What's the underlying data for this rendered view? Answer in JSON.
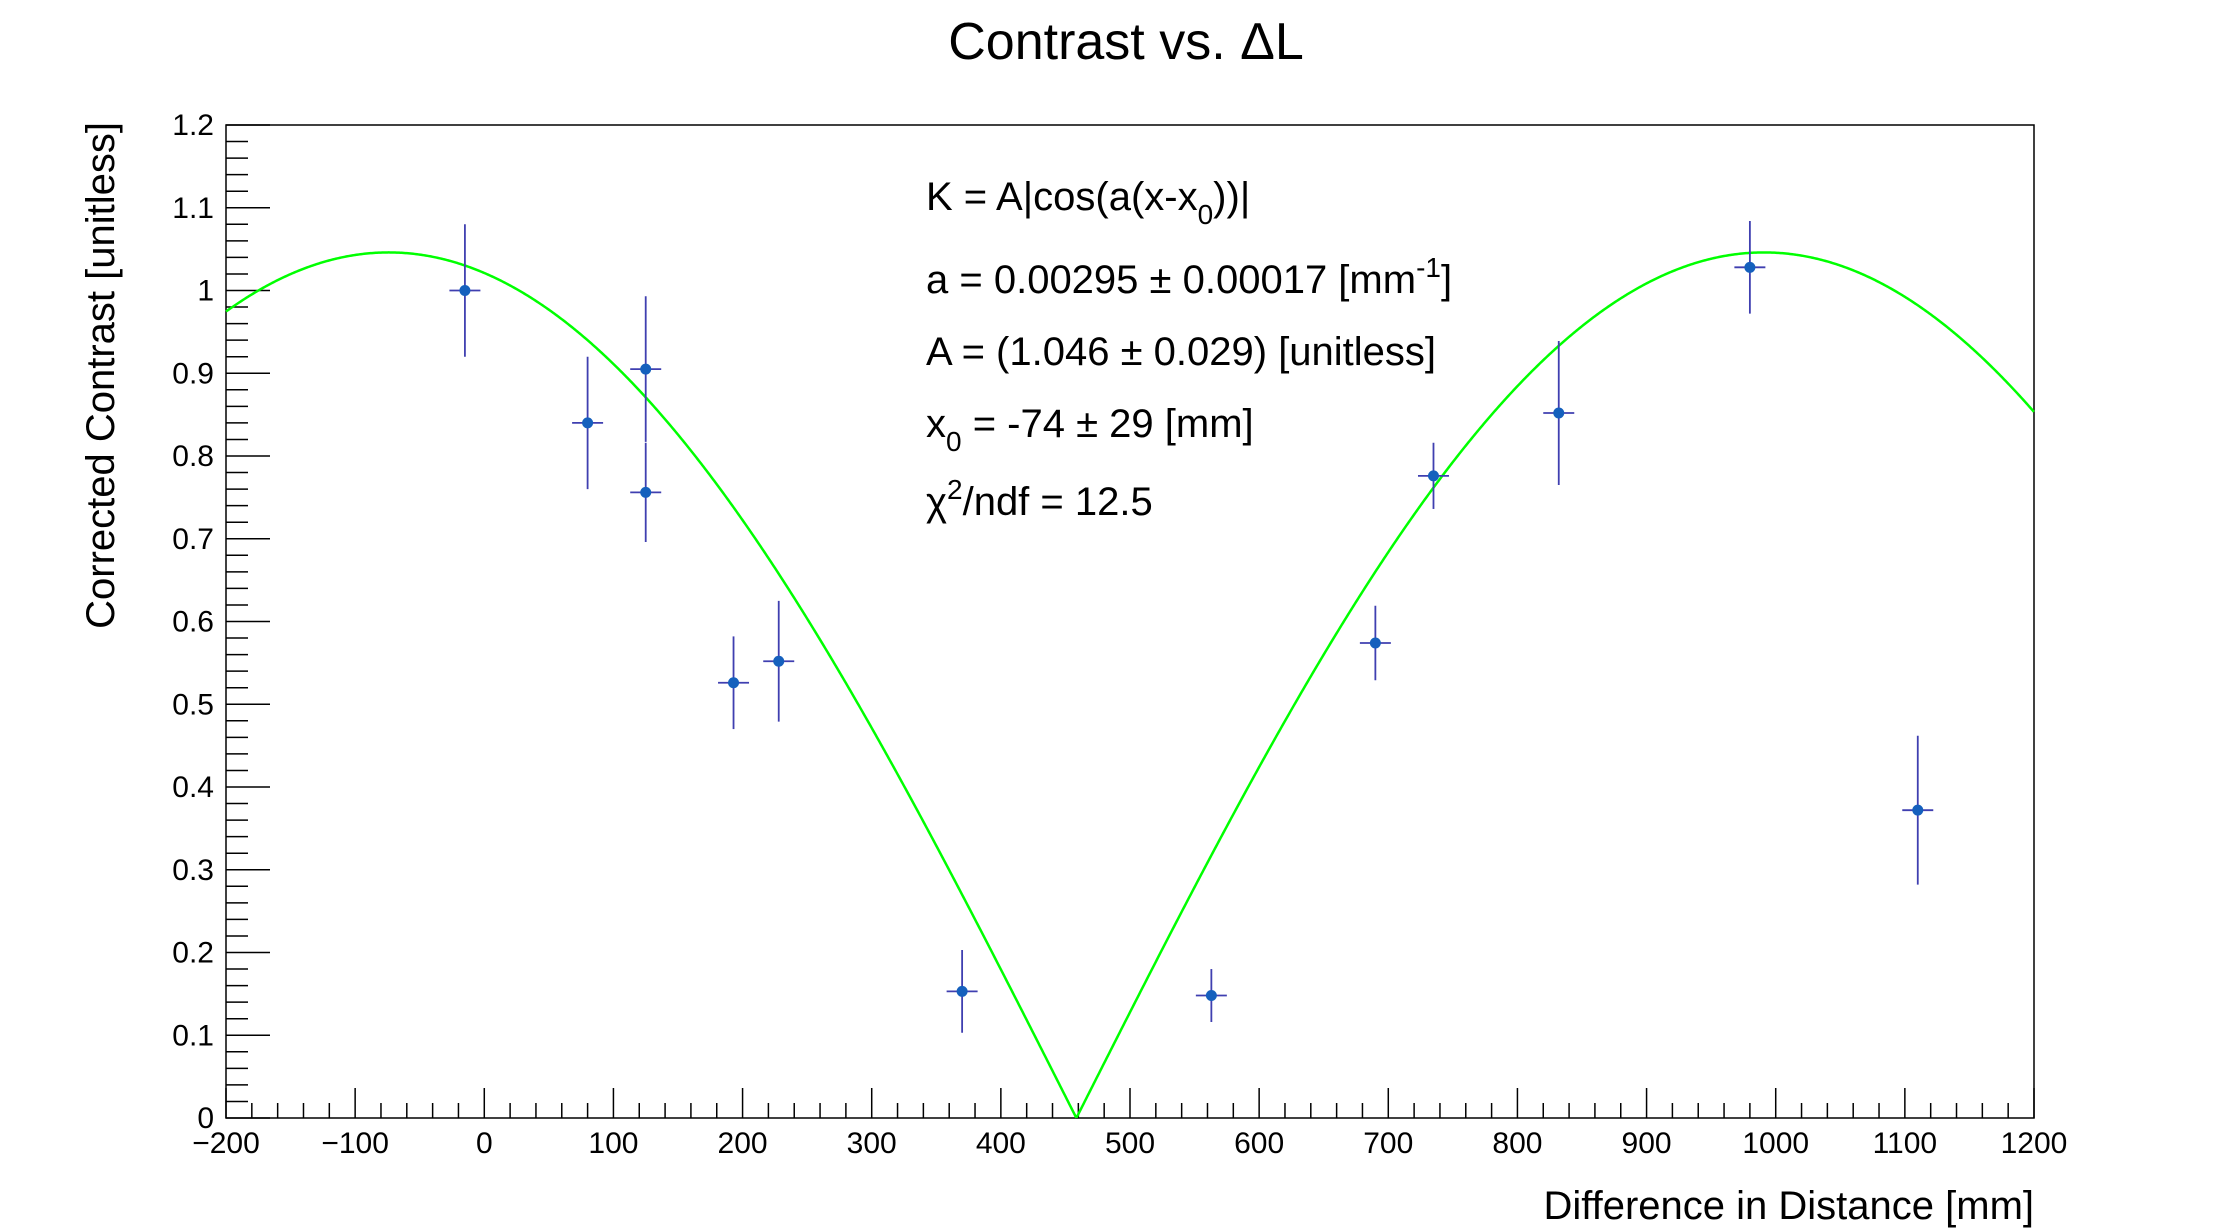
{
  "chart_data": {
    "type": "scatter",
    "title": "Contrast vs. ΔL",
    "xlabel": "Difference in Distance [mm]",
    "ylabel": "Corrected Contrast [unitless]",
    "xlim": [
      -200,
      1200
    ],
    "ylim": [
      0,
      1.2
    ],
    "x_ticks": [
      -200,
      -100,
      0,
      100,
      200,
      300,
      400,
      500,
      600,
      700,
      800,
      900,
      1000,
      1100,
      1200
    ],
    "y_ticks": [
      0,
      0.1,
      0.2,
      0.3,
      0.4,
      0.5,
      0.6,
      0.7,
      0.8,
      0.9,
      1,
      1.1,
      1.2
    ],
    "x_tick_labels": [
      "−200",
      "−100",
      "0",
      "100",
      "200",
      "300",
      "400",
      "500",
      "600",
      "700",
      "800",
      "900",
      "1000",
      "1100",
      "1200"
    ],
    "y_tick_labels": [
      "0",
      "0.1",
      "0.2",
      "0.3",
      "0.4",
      "0.5",
      "0.6",
      "0.7",
      "0.8",
      "0.9",
      "1",
      "1.1",
      "1.2"
    ],
    "grid": false,
    "points": [
      {
        "x": -15,
        "y": 1.0,
        "xerr": 12,
        "yerr": 0.08
      },
      {
        "x": 80,
        "y": 0.84,
        "xerr": 12,
        "yerr": 0.08
      },
      {
        "x": 125,
        "y": 0.905,
        "xerr": 12,
        "yerr": 0.088
      },
      {
        "x": 125,
        "y": 0.756,
        "xerr": 12,
        "yerr": 0.06
      },
      {
        "x": 193,
        "y": 0.526,
        "xerr": 12,
        "yerr": 0.056
      },
      {
        "x": 228,
        "y": 0.552,
        "xerr": 12,
        "yerr": 0.073
      },
      {
        "x": 370,
        "y": 0.153,
        "xerr": 12,
        "yerr": 0.05
      },
      {
        "x": 563,
        "y": 0.148,
        "xerr": 12,
        "yerr": 0.032
      },
      {
        "x": 690,
        "y": 0.574,
        "xerr": 12,
        "yerr": 0.045
      },
      {
        "x": 735,
        "y": 0.776,
        "xerr": 12,
        "yerr": 0.04
      },
      {
        "x": 832,
        "y": 0.852,
        "xerr": 12,
        "yerr": 0.087
      },
      {
        "x": 980,
        "y": 1.028,
        "xerr": 12,
        "yerr": 0.056
      },
      {
        "x": 1110,
        "y": 0.372,
        "xerr": 12,
        "yerr": 0.09
      }
    ],
    "fit": {
      "formula": "A|cos(a(x-x0))|",
      "a": 0.00295,
      "A": 1.046,
      "x0": -74,
      "color": "#00ff00"
    },
    "marker_color": "#1560bd",
    "errorbar_color": "#3f3fb0",
    "annotations": {
      "formula_left": "K = A|cos(a(x-x",
      "formula_sub": "0",
      "formula_right": "))|",
      "a_left": "a = 0.00295 ± 0.00017 [mm",
      "a_sup": "-1",
      "a_right": "]",
      "A_line": "A = (1.046 ± 0.029) [unitless]",
      "x0_left": "x",
      "x0_sub": "0",
      "x0_right": " = -74 ± 29 [mm]",
      "chi_left": "χ",
      "chi_sup": "2",
      "chi_right": "/ndf = 12.5"
    }
  }
}
